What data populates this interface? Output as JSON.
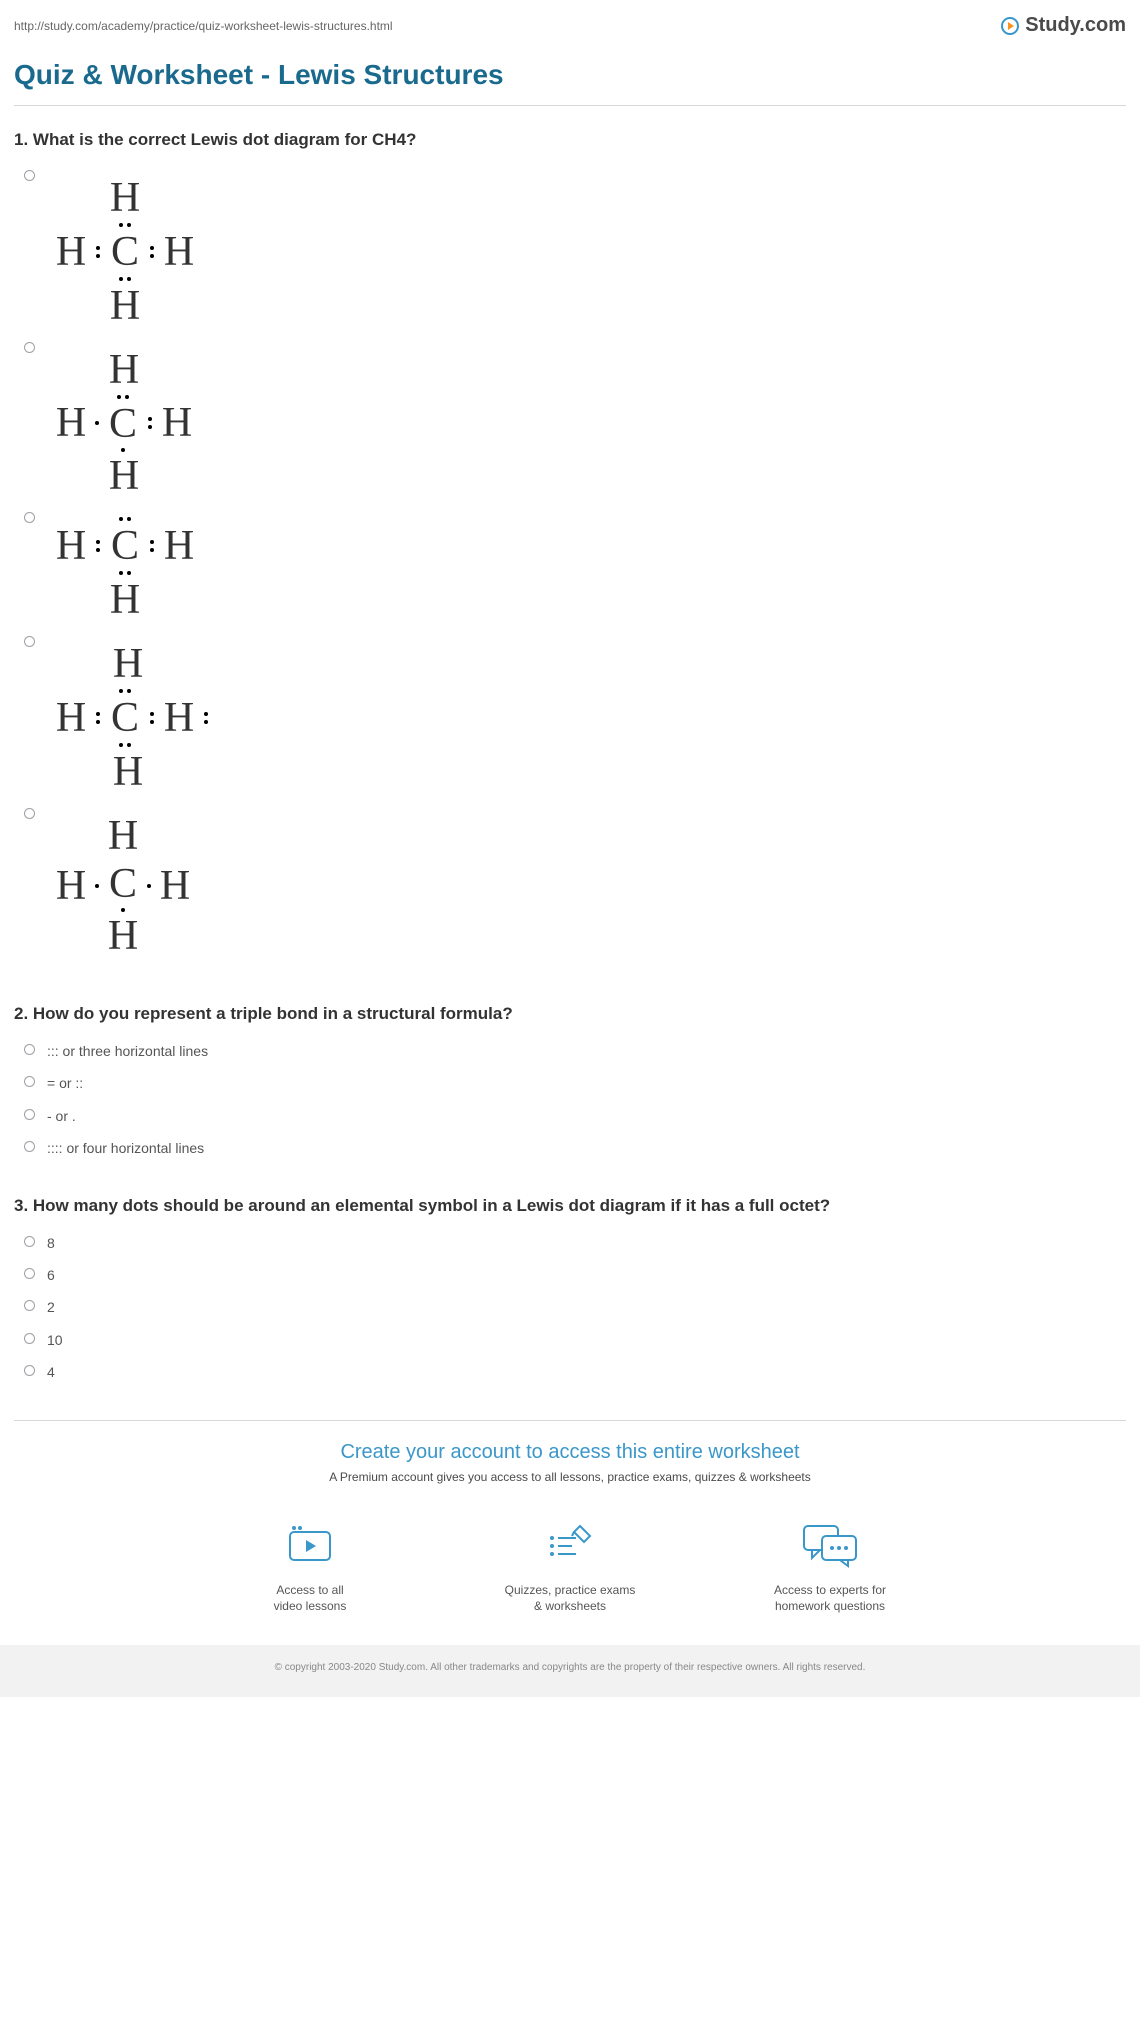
{
  "url": "http://study.com/academy/practice/quiz-worksheet-lewis-structures.html",
  "brand": "Study.com",
  "title": "Quiz & Worksheet - Lewis Structures",
  "colors": {
    "title": "#1a6a8e",
    "text": "#333333",
    "muted": "#666666",
    "accent": "#3a97c9",
    "orange": "#f7931e",
    "footer_bg": "#f2f2f2"
  },
  "q1": {
    "prompt": "1. What is the correct Lewis dot diagram for CH4?",
    "options": [
      {
        "top": "H",
        "top_dots": "none",
        "left": "H",
        "l_dots": "pair",
        "c_top": "pair",
        "c_bottom": "pair",
        "right": "H",
        "r_dots": "pair",
        "bottom": "H",
        "bottom_dots": "none",
        "r_extra": "none"
      },
      {
        "top": "H",
        "top_dots": "none",
        "left": "H",
        "l_dots": "single",
        "c_top": "pair",
        "c_bottom": "single",
        "right": "H",
        "r_dots": "pair",
        "bottom": "H",
        "bottom_dots": "none",
        "r_extra": "none"
      },
      {
        "top": null,
        "top_dots": "none",
        "left": "H",
        "l_dots": "pair",
        "c_top": "pair",
        "c_bottom": "pair",
        "right": "H",
        "r_dots": "pair",
        "bottom": "H",
        "bottom_dots": "none",
        "r_extra": "none"
      },
      {
        "top": "H",
        "top_dots": "none",
        "left": "H",
        "l_dots": "pair",
        "c_top": "pair",
        "c_bottom": "pair",
        "right": "H",
        "r_dots": "pair",
        "bottom": "H",
        "bottom_dots": "none",
        "r_extra": "pair"
      },
      {
        "top": "H",
        "top_dots": "none",
        "left": "H",
        "l_dots": "single",
        "c_top": "none",
        "c_bottom": "single",
        "right": "H",
        "r_dots": "single",
        "bottom": "H",
        "bottom_dots": "none",
        "r_extra": "none"
      }
    ]
  },
  "q2": {
    "prompt": "2. How do you represent a triple bond in a structural formula?",
    "options": [
      "::: or three horizontal lines",
      "= or ::",
      "- or .",
      ":::: or four horizontal lines"
    ]
  },
  "q3": {
    "prompt": "3. How many dots should be around an elemental symbol in a Lewis dot diagram if it has a full octet?",
    "options": [
      "8",
      "6",
      "2",
      "10",
      "4"
    ]
  },
  "cta": {
    "title": "Create your account to access this entire worksheet",
    "sub": "A Premium account gives you access to all lessons, practice exams, quizzes & worksheets",
    "features": [
      {
        "icon": "video-icon",
        "line1": "Access to all",
        "line2": "video lessons"
      },
      {
        "icon": "quiz-icon",
        "line1": "Quizzes, practice exams",
        "line2": "& worksheets"
      },
      {
        "icon": "chat-icon",
        "line1": "Access to experts for",
        "line2": "homework questions"
      }
    ]
  },
  "footer": "© copyright 2003-2020 Study.com. All other trademarks and copyrights are the property of their respective owners. All rights reserved."
}
